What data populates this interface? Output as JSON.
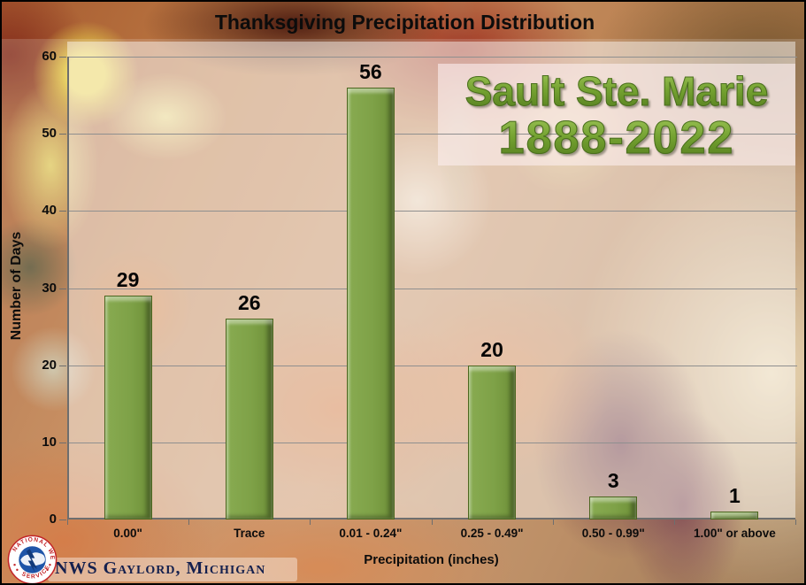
{
  "title": "Thanksgiving Precipitation Distribution",
  "annotation": {
    "line1": "Sault Ste. Marie",
    "line2": "1888-2022",
    "text_color": "#74a231"
  },
  "footer": {
    "credit": "NWS Gaylord, Michigan",
    "logo_icon": "nws-seal-icon"
  },
  "chart_data": {
    "type": "bar",
    "title": "Thanksgiving Precipitation Distribution",
    "categories": [
      "0.00\"",
      "Trace",
      "0.01 - 0.24\"",
      "0.25 - 0.49\"",
      "0.50 - 0.99\"",
      "1.00\" or above"
    ],
    "values": [
      29,
      26,
      56,
      20,
      3,
      1
    ],
    "xlabel": "Precipitation (inches)",
    "ylabel": "Number of Days",
    "ylim": [
      0,
      60
    ],
    "yticks": [
      0,
      10,
      20,
      30,
      40,
      50,
      60
    ],
    "grid": true,
    "legend": "none",
    "bar_color": "#7ea147",
    "bar_edge_color": "#4c661f",
    "data_label_color": "#050505",
    "axis_color": "#6e6e6e"
  }
}
